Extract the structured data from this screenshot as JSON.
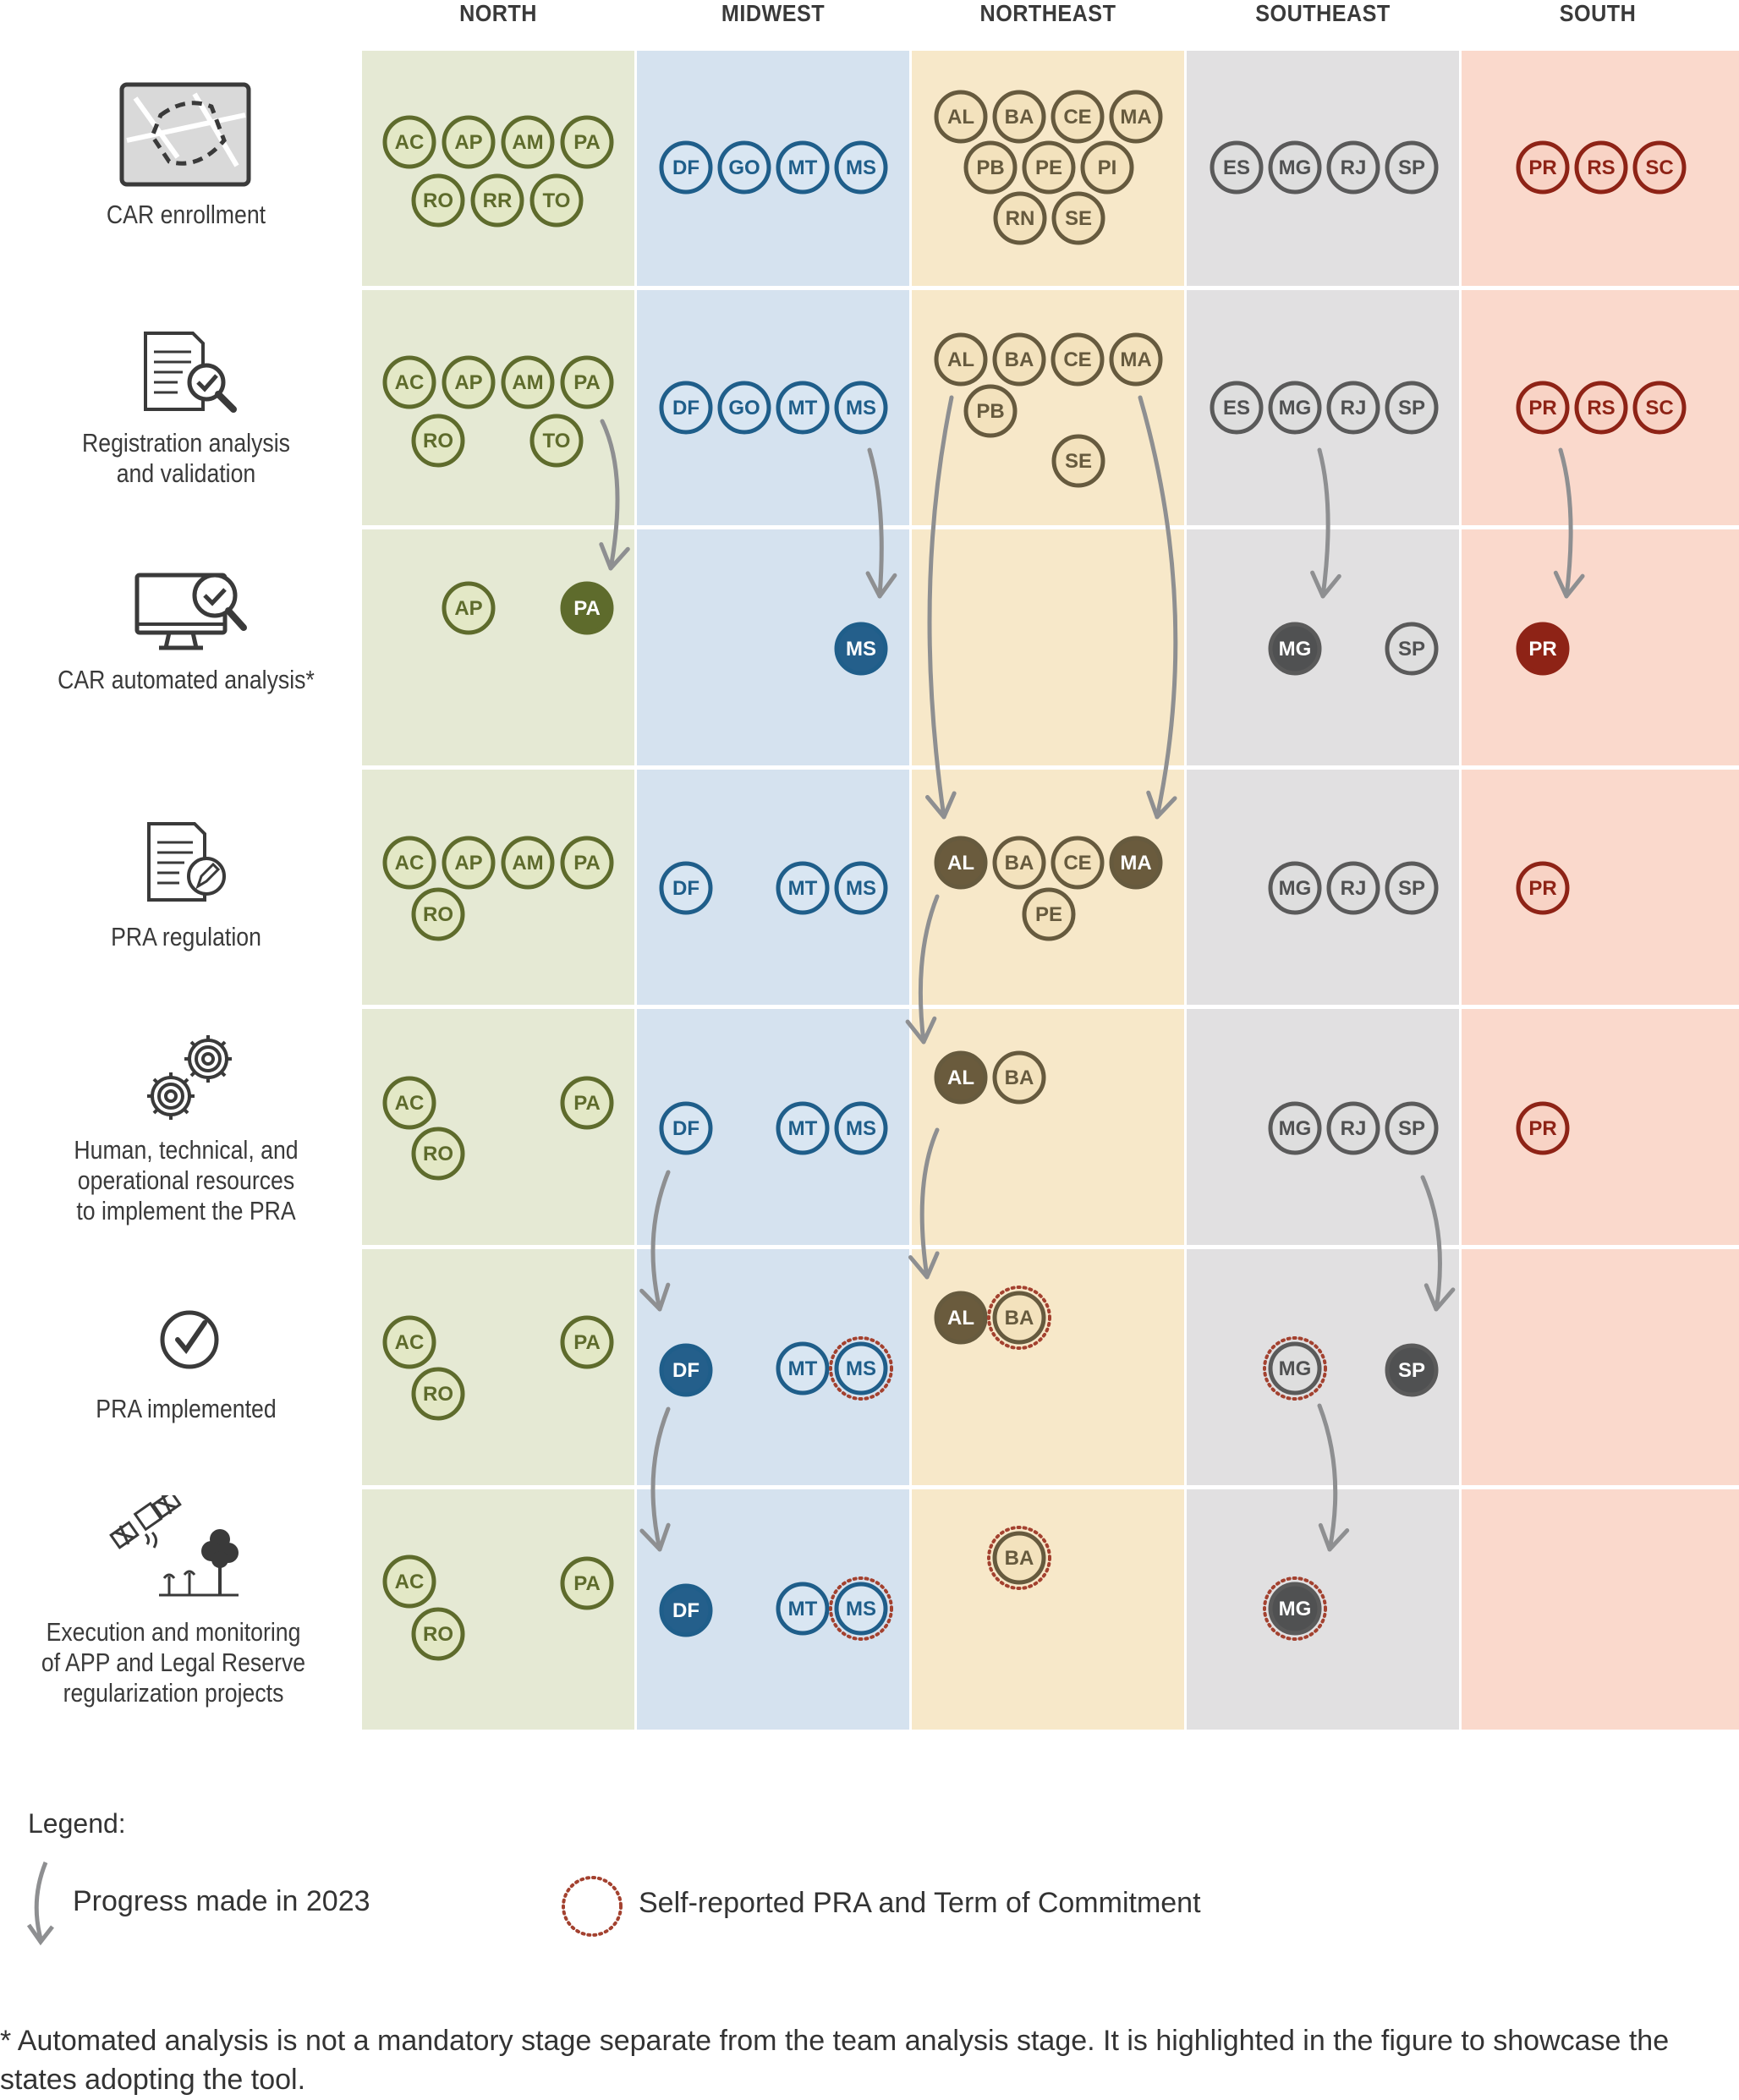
{
  "regions": [
    {
      "key": "north",
      "label": "NORTH",
      "bg": "#e5e9d4",
      "stroke": "#5e6b2c",
      "fill": "#e3e8c6",
      "dark": "#5e6b2c",
      "text_light": "#5e6b2c"
    },
    {
      "key": "midwest",
      "label": "MIDWEST",
      "bg": "#d5e2ef",
      "stroke": "#1f5e8a",
      "fill": "#d9e6f2",
      "dark": "#245f8b",
      "text_light": "#1f5e8a"
    },
    {
      "key": "northeast",
      "label": "NORTHEAST",
      "bg": "#f7e8c9",
      "stroke": "#665a3e",
      "fill": "#f3e2bd",
      "dark": "#6a5b3d",
      "text_light": "#665a3e"
    },
    {
      "key": "southeast",
      "label": "SOUTHEAST",
      "bg": "#e1e0e1",
      "stroke": "#5a5a5a",
      "fill": "#dedede",
      "dark": "#505152",
      "text_light": "#505152"
    },
    {
      "key": "south",
      "label": "SOUTH",
      "bg": "#fad9cc",
      "stroke": "#8e2316",
      "fill": "#f8d3c5",
      "dark": "#8e2316",
      "text_light": "#8e2316"
    }
  ],
  "stages": [
    {
      "key": "car-enrollment",
      "lines": [
        "CAR enrollment"
      ],
      "icon": "map-parcel-icon"
    },
    {
      "key": "registration-analysis",
      "lines": [
        "Registration analysis",
        "and validation"
      ],
      "icon": "document-check-icon"
    },
    {
      "key": "car-automated",
      "lines": [
        "CAR automated analysis*"
      ],
      "icon": "computer-check-icon"
    },
    {
      "key": "pra-regulation",
      "lines": [
        "PRA regulation"
      ],
      "icon": "document-pen-icon"
    },
    {
      "key": "resources",
      "lines": [
        "Human, technical, and",
        "operational resources",
        "to implement the PRA"
      ],
      "icon": "gears-icon"
    },
    {
      "key": "pra-implemented",
      "lines": [
        "PRA implemented"
      ],
      "icon": "check-circle-icon"
    },
    {
      "key": "execution",
      "lines": [
        "Execution and monitoring",
        "of APP and Legal Reserve",
        "regularization projects"
      ],
      "icon": "satellite-trees-icon"
    }
  ],
  "badges": [
    {
      "s": 0,
      "r": 0,
      "code": "AC"
    },
    {
      "s": 0,
      "r": 0,
      "code": "AP"
    },
    {
      "s": 0,
      "r": 0,
      "code": "AM"
    },
    {
      "s": 0,
      "r": 0,
      "code": "PA"
    },
    {
      "s": 0,
      "r": 0,
      "code": "RO"
    },
    {
      "s": 0,
      "r": 0,
      "code": "RR"
    },
    {
      "s": 0,
      "r": 0,
      "code": "TO"
    },
    {
      "s": 0,
      "r": 1,
      "code": "DF"
    },
    {
      "s": 0,
      "r": 1,
      "code": "GO"
    },
    {
      "s": 0,
      "r": 1,
      "code": "MT"
    },
    {
      "s": 0,
      "r": 1,
      "code": "MS"
    },
    {
      "s": 0,
      "r": 2,
      "code": "AL"
    },
    {
      "s": 0,
      "r": 2,
      "code": "BA"
    },
    {
      "s": 0,
      "r": 2,
      "code": "CE"
    },
    {
      "s": 0,
      "r": 2,
      "code": "MA"
    },
    {
      "s": 0,
      "r": 2,
      "code": "PB"
    },
    {
      "s": 0,
      "r": 2,
      "code": "PE"
    },
    {
      "s": 0,
      "r": 2,
      "code": "PI"
    },
    {
      "s": 0,
      "r": 2,
      "code": "RN"
    },
    {
      "s": 0,
      "r": 2,
      "code": "SE"
    },
    {
      "s": 0,
      "r": 3,
      "code": "ES"
    },
    {
      "s": 0,
      "r": 3,
      "code": "MG"
    },
    {
      "s": 0,
      "r": 3,
      "code": "RJ"
    },
    {
      "s": 0,
      "r": 3,
      "code": "SP"
    },
    {
      "s": 0,
      "r": 4,
      "code": "PR"
    },
    {
      "s": 0,
      "r": 4,
      "code": "RS"
    },
    {
      "s": 0,
      "r": 4,
      "code": "SC"
    },
    {
      "s": 1,
      "r": 0,
      "code": "AC"
    },
    {
      "s": 1,
      "r": 0,
      "code": "AP"
    },
    {
      "s": 1,
      "r": 0,
      "code": "AM"
    },
    {
      "s": 1,
      "r": 0,
      "code": "PA"
    },
    {
      "s": 1,
      "r": 0,
      "code": "RO"
    },
    {
      "s": 1,
      "r": 0,
      "code": "TO"
    },
    {
      "s": 1,
      "r": 1,
      "code": "DF"
    },
    {
      "s": 1,
      "r": 1,
      "code": "GO"
    },
    {
      "s": 1,
      "r": 1,
      "code": "MT"
    },
    {
      "s": 1,
      "r": 1,
      "code": "MS"
    },
    {
      "s": 1,
      "r": 2,
      "code": "AL"
    },
    {
      "s": 1,
      "r": 2,
      "code": "BA"
    },
    {
      "s": 1,
      "r": 2,
      "code": "CE"
    },
    {
      "s": 1,
      "r": 2,
      "code": "MA"
    },
    {
      "s": 1,
      "r": 2,
      "code": "PB"
    },
    {
      "s": 1,
      "r": 2,
      "code": "SE"
    },
    {
      "s": 1,
      "r": 3,
      "code": "ES"
    },
    {
      "s": 1,
      "r": 3,
      "code": "MG"
    },
    {
      "s": 1,
      "r": 3,
      "code": "RJ"
    },
    {
      "s": 1,
      "r": 3,
      "code": "SP"
    },
    {
      "s": 1,
      "r": 4,
      "code": "PR"
    },
    {
      "s": 1,
      "r": 4,
      "code": "RS"
    },
    {
      "s": 1,
      "r": 4,
      "code": "SC"
    },
    {
      "s": 2,
      "r": 0,
      "code": "AP"
    },
    {
      "s": 2,
      "r": 0,
      "code": "PA",
      "progress": true
    },
    {
      "s": 2,
      "r": 1,
      "code": "MS",
      "progress": true
    },
    {
      "s": 2,
      "r": 3,
      "code": "MG",
      "progress": true
    },
    {
      "s": 2,
      "r": 3,
      "code": "SP"
    },
    {
      "s": 2,
      "r": 4,
      "code": "PR",
      "progress": true
    },
    {
      "s": 3,
      "r": 0,
      "code": "AC"
    },
    {
      "s": 3,
      "r": 0,
      "code": "AP"
    },
    {
      "s": 3,
      "r": 0,
      "code": "AM"
    },
    {
      "s": 3,
      "r": 0,
      "code": "PA"
    },
    {
      "s": 3,
      "r": 0,
      "code": "RO"
    },
    {
      "s": 3,
      "r": 1,
      "code": "DF"
    },
    {
      "s": 3,
      "r": 1,
      "code": "MT"
    },
    {
      "s": 3,
      "r": 1,
      "code": "MS"
    },
    {
      "s": 3,
      "r": 2,
      "code": "AL",
      "progress": true
    },
    {
      "s": 3,
      "r": 2,
      "code": "BA"
    },
    {
      "s": 3,
      "r": 2,
      "code": "CE"
    },
    {
      "s": 3,
      "r": 2,
      "code": "MA",
      "progress": true
    },
    {
      "s": 3,
      "r": 2,
      "code": "PE"
    },
    {
      "s": 3,
      "r": 3,
      "code": "MG"
    },
    {
      "s": 3,
      "r": 3,
      "code": "RJ"
    },
    {
      "s": 3,
      "r": 3,
      "code": "SP"
    },
    {
      "s": 3,
      "r": 4,
      "code": "PR"
    },
    {
      "s": 4,
      "r": 0,
      "code": "AC"
    },
    {
      "s": 4,
      "r": 0,
      "code": "PA"
    },
    {
      "s": 4,
      "r": 0,
      "code": "RO"
    },
    {
      "s": 4,
      "r": 1,
      "code": "DF"
    },
    {
      "s": 4,
      "r": 1,
      "code": "MT"
    },
    {
      "s": 4,
      "r": 1,
      "code": "MS"
    },
    {
      "s": 4,
      "r": 2,
      "code": "AL",
      "progress": true
    },
    {
      "s": 4,
      "r": 2,
      "code": "BA"
    },
    {
      "s": 4,
      "r": 3,
      "code": "MG"
    },
    {
      "s": 4,
      "r": 3,
      "code": "RJ"
    },
    {
      "s": 4,
      "r": 3,
      "code": "SP"
    },
    {
      "s": 4,
      "r": 4,
      "code": "PR"
    },
    {
      "s": 5,
      "r": 0,
      "code": "AC"
    },
    {
      "s": 5,
      "r": 0,
      "code": "PA"
    },
    {
      "s": 5,
      "r": 0,
      "code": "RO"
    },
    {
      "s": 5,
      "r": 1,
      "code": "DF",
      "progress": true
    },
    {
      "s": 5,
      "r": 1,
      "code": "MT"
    },
    {
      "s": 5,
      "r": 1,
      "code": "MS",
      "self_reported": true
    },
    {
      "s": 5,
      "r": 2,
      "code": "AL",
      "progress": true
    },
    {
      "s": 5,
      "r": 2,
      "code": "BA",
      "self_reported": true
    },
    {
      "s": 5,
      "r": 3,
      "code": "MG",
      "self_reported": true
    },
    {
      "s": 5,
      "r": 3,
      "code": "SP",
      "progress": true
    },
    {
      "s": 6,
      "r": 0,
      "code": "AC"
    },
    {
      "s": 6,
      "r": 0,
      "code": "PA"
    },
    {
      "s": 6,
      "r": 0,
      "code": "RO"
    },
    {
      "s": 6,
      "r": 1,
      "code": "DF",
      "progress": true
    },
    {
      "s": 6,
      "r": 1,
      "code": "MT"
    },
    {
      "s": 6,
      "r": 1,
      "code": "MS",
      "self_reported": true
    },
    {
      "s": 6,
      "r": 2,
      "code": "BA",
      "self_reported": true
    },
    {
      "s": 6,
      "r": 3,
      "code": "MG",
      "progress": true,
      "self_reported": true
    }
  ],
  "legend": {
    "title": "Legend:",
    "progress_label": "Progress made in 2023",
    "self_reported_label": "Self-reported PRA and Term of Commitment"
  },
  "colors": {
    "arrow": "#8e8f91",
    "self_reported_ring": "#a3412f",
    "divider": "#ffffff"
  },
  "footnote_lines": [
    "* Automated analysis is not a mandatory stage separate from the team analysis stage. It is highlighted in the figure to showcase the",
    "states adopting the tool."
  ]
}
